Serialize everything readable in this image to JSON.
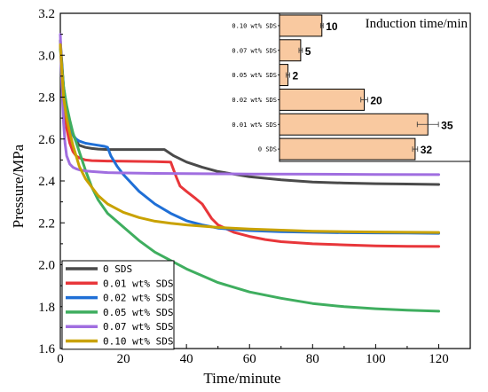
{
  "chart_data": {
    "type": "line",
    "xlabel": "Time/minute",
    "ylabel": "Pressure/MPa",
    "xlim": [
      0,
      130
    ],
    "ylim": [
      1.6,
      3.2
    ],
    "xticks": [
      0,
      20,
      40,
      60,
      80,
      100,
      120
    ],
    "yticks": [
      1.6,
      1.8,
      2.0,
      2.2,
      2.4,
      2.6,
      2.8,
      3.0,
      3.2
    ],
    "tick_labels_x": [
      "0",
      "20",
      "40",
      "60",
      "80",
      "100",
      "120"
    ],
    "tick_labels_y": [
      "1.6",
      "1.8",
      "2.0",
      "2.2",
      "2.4",
      "2.6",
      "2.8",
      "3.0",
      "3.2"
    ],
    "grid": false,
    "legend_position": "bottom-left",
    "series": [
      {
        "name": "0 SDS",
        "color": "#4a4a4a",
        "x": [
          0,
          1,
          2,
          3,
          4,
          5,
          6,
          8,
          10,
          12,
          15,
          20,
          25,
          30,
          33,
          36,
          40,
          45,
          50,
          60,
          70,
          80,
          90,
          100,
          110,
          120
        ],
        "y": [
          3.07,
          2.85,
          2.74,
          2.67,
          2.62,
          2.59,
          2.57,
          2.56,
          2.555,
          2.552,
          2.55,
          2.55,
          2.55,
          2.55,
          2.55,
          2.52,
          2.49,
          2.465,
          2.445,
          2.42,
          2.405,
          2.395,
          2.39,
          2.387,
          2.385,
          2.383
        ]
      },
      {
        "name": "0.01 wt% SDS",
        "color": "#e8363a",
        "x": [
          0,
          1,
          2,
          3,
          4,
          5,
          6,
          8,
          10,
          15,
          20,
          25,
          30,
          35,
          36,
          37,
          38,
          40,
          43,
          45,
          48,
          50,
          55,
          60,
          65,
          70,
          80,
          90,
          100,
          110,
          120
        ],
        "y": [
          3.05,
          2.78,
          2.65,
          2.58,
          2.54,
          2.52,
          2.51,
          2.5,
          2.497,
          2.495,
          2.494,
          2.493,
          2.492,
          2.49,
          2.45,
          2.41,
          2.375,
          2.35,
          2.315,
          2.29,
          2.22,
          2.19,
          2.155,
          2.135,
          2.12,
          2.11,
          2.1,
          2.095,
          2.09,
          2.088,
          2.087
        ]
      },
      {
        "name": "0.02 wt% SDS",
        "color": "#1f6fd6",
        "x": [
          0,
          1,
          2,
          3,
          4,
          5,
          6,
          8,
          10,
          12,
          14,
          15,
          16,
          18,
          20,
          25,
          30,
          35,
          40,
          45,
          50,
          55,
          60,
          70,
          80,
          90,
          100,
          110,
          120
        ],
        "y": [
          3.05,
          2.84,
          2.73,
          2.66,
          2.62,
          2.6,
          2.59,
          2.58,
          2.575,
          2.57,
          2.565,
          2.56,
          2.52,
          2.47,
          2.43,
          2.35,
          2.29,
          2.245,
          2.21,
          2.19,
          2.175,
          2.168,
          2.163,
          2.158,
          2.155,
          2.153,
          2.152,
          2.151,
          2.15
        ]
      },
      {
        "name": "0.05 wt% SDS",
        "color": "#3fae5f",
        "x": [
          0,
          1,
          2,
          3,
          4,
          6,
          8,
          10,
          12,
          15,
          20,
          25,
          30,
          40,
          50,
          60,
          70,
          80,
          90,
          100,
          110,
          120
        ],
        "y": [
          3.03,
          2.85,
          2.76,
          2.69,
          2.63,
          2.54,
          2.45,
          2.37,
          2.31,
          2.245,
          2.18,
          2.115,
          2.06,
          1.98,
          1.915,
          1.87,
          1.84,
          1.815,
          1.8,
          1.79,
          1.783,
          1.778
        ]
      },
      {
        "name": "0.07 wt% SDS",
        "color": "#a06ee0",
        "x": [
          0,
          0.5,
          1,
          1.5,
          2,
          3,
          4,
          5,
          6,
          8,
          10,
          15,
          20,
          30,
          40,
          50,
          60,
          80,
          100,
          120
        ],
        "y": [
          3.1,
          2.85,
          2.68,
          2.58,
          2.52,
          2.48,
          2.465,
          2.458,
          2.453,
          2.448,
          2.445,
          2.44,
          2.438,
          2.436,
          2.435,
          2.434,
          2.433,
          2.432,
          2.431,
          2.43
        ]
      },
      {
        "name": "0.10 wt% SDS",
        "color": "#c9a200",
        "x": [
          0,
          1,
          2,
          3,
          4,
          5,
          6,
          8,
          10,
          12,
          15,
          20,
          25,
          30,
          35,
          40,
          50,
          60,
          70,
          80,
          90,
          100,
          110,
          120
        ],
        "y": [
          3.05,
          2.8,
          2.7,
          2.63,
          2.57,
          2.52,
          2.47,
          2.41,
          2.37,
          2.33,
          2.29,
          2.25,
          2.225,
          2.208,
          2.198,
          2.19,
          2.178,
          2.17,
          2.165,
          2.16,
          2.158,
          2.156,
          2.155,
          2.154
        ]
      }
    ],
    "inset": {
      "type": "bar",
      "orientation": "horizontal",
      "title": "Induction time/min",
      "bar_color": "#f9c9a0",
      "categories": [
        "0.10 wt% SDS",
        "0.07 wt% SDS",
        "0.05 wt% SDS",
        "0.02 wt% SDS",
        "0.01 wt% SDS",
        "0 SDS"
      ],
      "values": [
        10,
        5,
        2,
        20,
        35,
        32
      ],
      "errors": [
        0.3,
        0.4,
        0.4,
        0.8,
        2.5,
        0.6
      ],
      "value_labels": [
        "10",
        "5",
        "2",
        "20",
        "35",
        "32"
      ],
      "xlim": [
        0,
        45
      ]
    }
  }
}
